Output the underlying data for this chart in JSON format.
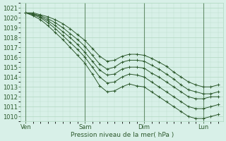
{
  "title": "",
  "xlabel": "Pression niveau de la mer( hPa )",
  "ylabel": "",
  "bg_color": "#d8f0e8",
  "grid_color": "#b0d8c0",
  "line_color": "#2d5a2d",
  "marker_color": "#2d5a2d",
  "ylim": [
    1009.5,
    1021.5
  ],
  "yticks": [
    1010,
    1011,
    1012,
    1013,
    1014,
    1015,
    1016,
    1017,
    1018,
    1019,
    1020,
    1021
  ],
  "xtick_labels": [
    "Ven",
    "Sam",
    "Dim",
    "Lun"
  ],
  "xtick_pos": [
    0,
    24,
    48,
    72
  ],
  "xlim": [
    -2,
    80
  ],
  "lines": [
    [
      0,
      1020.5,
      3,
      1020.2,
      6,
      1019.8,
      9,
      1019.2,
      12,
      1018.5,
      15,
      1017.8,
      18,
      1017.0,
      21,
      1016.2,
      24,
      1015.4,
      27,
      1014.3,
      30,
      1013.1,
      33,
      1012.5,
      36,
      1012.6,
      39,
      1013.0,
      42,
      1013.3,
      45,
      1013.1,
      48,
      1013.0,
      51,
      1012.5,
      54,
      1012.0,
      57,
      1011.5,
      60,
      1011.0,
      63,
      1010.5,
      66,
      1010.0,
      69,
      1009.8,
      72,
      1009.8,
      75,
      1010.0,
      78,
      1010.2
    ],
    [
      0,
      1020.5,
      3,
      1020.3,
      6,
      1020.0,
      9,
      1019.5,
      12,
      1018.9,
      15,
      1018.2,
      18,
      1017.5,
      21,
      1016.8,
      24,
      1016.0,
      27,
      1015.0,
      30,
      1014.0,
      33,
      1013.4,
      36,
      1013.5,
      39,
      1014.0,
      42,
      1014.3,
      45,
      1014.2,
      48,
      1014.0,
      51,
      1013.5,
      54,
      1013.0,
      57,
      1012.5,
      60,
      1012.0,
      63,
      1011.5,
      66,
      1011.0,
      69,
      1010.8,
      72,
      1010.8,
      75,
      1011.0,
      78,
      1011.2
    ],
    [
      0,
      1020.5,
      3,
      1020.4,
      6,
      1020.1,
      9,
      1019.7,
      12,
      1019.2,
      15,
      1018.6,
      18,
      1018.0,
      21,
      1017.3,
      24,
      1016.5,
      27,
      1015.6,
      30,
      1014.7,
      33,
      1014.2,
      36,
      1014.3,
      39,
      1014.8,
      42,
      1015.0,
      45,
      1015.0,
      48,
      1014.9,
      51,
      1014.4,
      54,
      1014.0,
      57,
      1013.5,
      60,
      1013.0,
      63,
      1012.5,
      66,
      1012.0,
      69,
      1011.8,
      72,
      1011.8,
      75,
      1012.0,
      78,
      1012.0
    ],
    [
      0,
      1020.5,
      3,
      1020.4,
      6,
      1020.2,
      9,
      1019.9,
      12,
      1019.5,
      15,
      1019.0,
      18,
      1018.4,
      21,
      1017.8,
      24,
      1017.1,
      27,
      1016.2,
      30,
      1015.3,
      33,
      1014.8,
      36,
      1015.0,
      39,
      1015.5,
      42,
      1015.7,
      45,
      1015.7,
      48,
      1015.6,
      51,
      1015.2,
      54,
      1014.8,
      57,
      1014.3,
      60,
      1013.8,
      63,
      1013.2,
      66,
      1012.7,
      69,
      1012.5,
      72,
      1012.3,
      75,
      1012.3,
      78,
      1012.5
    ],
    [
      0,
      1020.5,
      3,
      1020.5,
      6,
      1020.3,
      9,
      1020.1,
      12,
      1019.8,
      15,
      1019.4,
      18,
      1018.9,
      21,
      1018.3,
      24,
      1017.7,
      27,
      1016.9,
      30,
      1016.1,
      33,
      1015.6,
      36,
      1015.7,
      39,
      1016.1,
      42,
      1016.3,
      45,
      1016.3,
      48,
      1016.2,
      51,
      1015.9,
      54,
      1015.5,
      57,
      1015.1,
      60,
      1014.5,
      63,
      1014.0,
      66,
      1013.5,
      69,
      1013.2,
      72,
      1013.0,
      75,
      1013.0,
      78,
      1013.2
    ]
  ]
}
